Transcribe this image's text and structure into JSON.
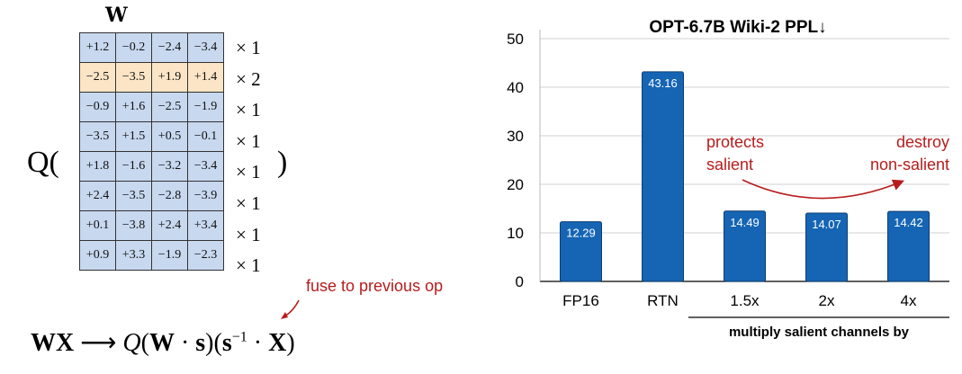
{
  "left_panel": {
    "matrix_label": "W",
    "q_open": "Q(",
    "q_close": ")",
    "rows": [
      {
        "cells": [
          "+1.2",
          "−0.2",
          "−2.4",
          "−3.4"
        ],
        "scale": "× 1",
        "salient": false
      },
      {
        "cells": [
          "−2.5",
          "−3.5",
          "+1.9",
          "+1.4"
        ],
        "scale": "× 2",
        "salient": true
      },
      {
        "cells": [
          "−0.9",
          "+1.6",
          "−2.5",
          "−1.9"
        ],
        "scale": "× 1",
        "salient": false
      },
      {
        "cells": [
          "−3.5",
          "+1.5",
          "+0.5",
          "−0.1"
        ],
        "scale": "× 1",
        "salient": false
      },
      {
        "cells": [
          "+1.8",
          "−1.6",
          "−3.2",
          "−3.4"
        ],
        "scale": "× 1",
        "salient": false
      },
      {
        "cells": [
          "+2.4",
          "−3.5",
          "−2.8",
          "−3.9"
        ],
        "scale": "× 1",
        "salient": false
      },
      {
        "cells": [
          "+0.1",
          "−3.8",
          "+2.4",
          "+3.4"
        ],
        "scale": "× 1",
        "salient": false
      },
      {
        "cells": [
          "+0.9",
          "+3.3",
          "−1.9",
          "−2.3"
        ],
        "scale": "× 1",
        "salient": false
      }
    ],
    "fuse_note": "fuse to previous op",
    "formula": {
      "lhs": "WX",
      "arrow": "⟶",
      "q": "Q",
      "w_bold": "W",
      "dot": "·",
      "s_bold": "s",
      "s_inv_sup": "−1",
      "x_bold": "X"
    },
    "colors": {
      "normal_cell": "#c7d8ef",
      "salient_cell": "#fbe5c6",
      "annotation": "#b71c1c"
    }
  },
  "chart_data": {
    "type": "bar",
    "title": "OPT-6.7B Wiki-2 PPL↓",
    "categories": [
      "FP16",
      "RTN",
      "1.5x",
      "2x",
      "4x"
    ],
    "values": [
      12.29,
      43.16,
      14.49,
      14.07,
      14.42
    ],
    "value_labels": [
      "12.29",
      "43.16",
      "14.49",
      "14.07",
      "14.42"
    ],
    "xlabel": "multiply salient channels by",
    "ylabel": "",
    "ylim": [
      0,
      50
    ],
    "yticks": [
      0,
      10,
      20,
      30,
      40,
      50
    ],
    "grid": true,
    "bar_color": "#1565b4",
    "annotations": [
      {
        "lines": [
          "protects",
          "salient"
        ],
        "color": "#b71c1c"
      },
      {
        "lines": [
          "destroy",
          "non-salient"
        ],
        "color": "#b71c1c"
      }
    ]
  }
}
